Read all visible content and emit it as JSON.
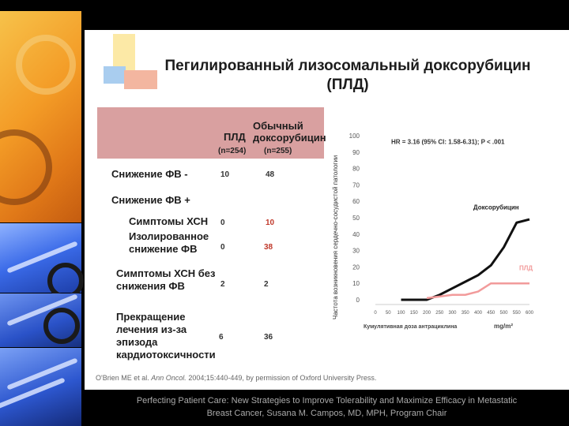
{
  "slide": {
    "title_line1": "Пегилированный лизосомальный доксорубицин",
    "title_line2": "(ПЛД)"
  },
  "table": {
    "col_pld": "ПЛД",
    "col_conv_line1": "Обычный",
    "col_conv_line2": "доксорубицин",
    "n_pld": "(n=254)",
    "n_conv": "(n=255)",
    "rows": [
      {
        "label": "Снижение ФВ -",
        "pld": "10",
        "conv": "48",
        "conv_color": "dark"
      },
      {
        "label": "Снижение ФВ +",
        "pld": "",
        "conv": "",
        "conv_color": "dark"
      },
      {
        "label": "Симптомы ХСН",
        "pld": "0",
        "conv": "10",
        "conv_color": "red"
      },
      {
        "label": "Изолированное снижение ФВ",
        "pld": "0",
        "conv": "38",
        "conv_color": "red"
      },
      {
        "label": "Симптомы ХСН без снижения ФВ",
        "pld": "2",
        "conv": "2",
        "conv_color": "dark"
      },
      {
        "label": "Прекращение лечения из-за эпизода кардиотоксичности",
        "pld": "6",
        "conv": "36",
        "conv_color": "dark"
      }
    ]
  },
  "chart_data": {
    "type": "line",
    "title": "",
    "ylabel": "Частота возникновения сердечно-сосудистой патологии",
    "xlabel": "Кумулятивная доза антрациклина",
    "xunit": "mg/m²",
    "annotation": "HR = 3.16 (95% CI: 1.58-6.31); P < .001",
    "xlim": [
      0,
      600
    ],
    "ylim": [
      0,
      100
    ],
    "xticks": [
      "0",
      "50",
      "100",
      "150",
      "200",
      "250",
      "300",
      "350",
      "400",
      "450",
      "500",
      "550",
      "600"
    ],
    "yticks": [
      "0",
      "10",
      "20",
      "30",
      "40",
      "50",
      "60",
      "70",
      "80",
      "90",
      "100"
    ],
    "series": [
      {
        "name": "Доксорубицин",
        "color": "#111111",
        "x": [
          100,
          150,
          200,
          250,
          300,
          350,
          400,
          450,
          500,
          550,
          600
        ],
        "y": [
          0,
          0,
          0,
          3,
          7,
          11,
          15,
          21,
          32,
          47,
          49
        ]
      },
      {
        "name": "ПЛД",
        "color": "#f29b9b",
        "x": [
          200,
          250,
          300,
          350,
          400,
          450,
          500,
          550,
          600
        ],
        "y": [
          1,
          2,
          3,
          3,
          5,
          10,
          10,
          10,
          10
        ]
      }
    ]
  },
  "citation": {
    "authors": "O'Brien ME et al.",
    "journal": "Ann Oncol.",
    "details": "2004;15:440-449, by permission of Oxford University Press."
  },
  "footer": {
    "line1": "Perfecting Patient Care: New Strategies to Improve Tolerability and Maximize Efficacy in Metastatic",
    "line2": "Breast Cancer, Susana M. Campos, MD, MPH, Program Chair"
  }
}
